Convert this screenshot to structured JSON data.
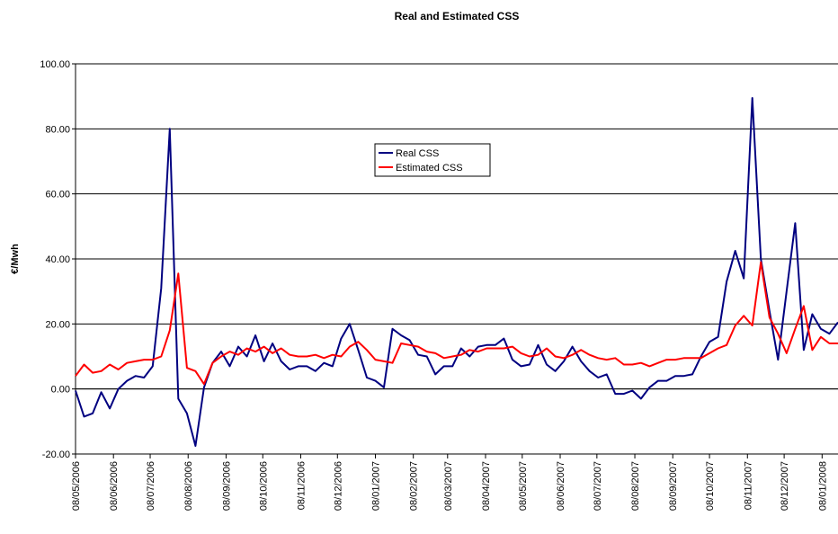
{
  "chart_data": {
    "type": "line",
    "title": "Real and Estimated CSS",
    "y_label": "€/Mwh",
    "x": [
      "08/05/2006",
      "15/05/2006",
      "22/05/2006",
      "29/05/2006",
      "05/06/2006",
      "12/06/2006",
      "19/06/2006",
      "26/06/2006",
      "03/07/2006",
      "10/07/2006",
      "17/07/2006",
      "24/07/2006",
      "31/07/2006",
      "07/08/2006",
      "14/08/2006",
      "21/08/2006",
      "28/08/2006",
      "04/09/2006",
      "11/09/2006",
      "18/09/2006",
      "25/09/2006",
      "02/10/2006",
      "09/10/2006",
      "16/10/2006",
      "23/10/2006",
      "30/10/2006",
      "06/11/2006",
      "13/11/2006",
      "20/11/2006",
      "27/11/2006",
      "04/12/2006",
      "11/12/2006",
      "18/12/2006",
      "25/12/2006",
      "01/01/2007",
      "08/01/2007",
      "15/01/2007",
      "22/01/2007",
      "29/01/2007",
      "05/02/2007",
      "12/02/2007",
      "19/02/2007",
      "26/02/2007",
      "05/03/2007",
      "12/03/2007",
      "19/03/2007",
      "26/03/2007",
      "02/04/2007",
      "09/04/2007",
      "16/04/2007",
      "23/04/2007",
      "30/04/2007",
      "07/05/2007",
      "14/05/2007",
      "21/05/2007",
      "28/05/2007",
      "04/06/2007",
      "11/06/2007",
      "18/06/2007",
      "25/06/2007",
      "02/07/2007",
      "09/07/2007",
      "16/07/2007",
      "23/07/2007",
      "30/07/2007",
      "06/08/2007",
      "13/08/2007",
      "20/08/2007",
      "27/08/2007",
      "03/09/2007",
      "10/09/2007",
      "17/09/2007",
      "24/09/2007",
      "01/10/2007",
      "08/10/2007",
      "15/10/2007",
      "22/10/2007",
      "29/10/2007",
      "05/11/2007",
      "12/11/2007",
      "19/11/2007",
      "26/11/2007",
      "03/12/2007",
      "10/12/2007",
      "17/12/2007",
      "24/12/2007",
      "31/12/2007",
      "07/01/2008",
      "14/01/2008",
      "21/01/2008"
    ],
    "series": [
      {
        "name": "Real CSS",
        "color": "#000080",
        "values": [
          -0.5,
          -8.5,
          -7.5,
          -1,
          -6,
          0,
          2.5,
          4,
          3.5,
          7,
          31,
          80,
          -3,
          -7.5,
          -17.5,
          0.5,
          8,
          11.5,
          7,
          13,
          10,
          16.5,
          8.5,
          14,
          8.5,
          6,
          7,
          7,
          5.5,
          8,
          7,
          15.5,
          20,
          12,
          3.5,
          2.5,
          0.5,
          18.5,
          16.5,
          15,
          10.5,
          10,
          4.5,
          7,
          7,
          12.5,
          10,
          13,
          13.5,
          13.5,
          15.5,
          9,
          7,
          7.5,
          13.5,
          7.5,
          5.5,
          8.5,
          13,
          8.5,
          5.5,
          3.5,
          4.5,
          -1.5,
          -1.5,
          -0.5,
          -3,
          0.5,
          2.5,
          2.5,
          4,
          4,
          4.5,
          10,
          14.5,
          16,
          33,
          42.5,
          34,
          89.5,
          40,
          24,
          9,
          30,
          51,
          12,
          23,
          18.5,
          17,
          20.5
        ]
      },
      {
        "name": "Estimated CSS",
        "color": "#ff0000",
        "values": [
          4,
          7.5,
          5,
          5.5,
          7.5,
          6,
          8,
          8.5,
          9,
          9,
          10,
          18,
          35.5,
          6.5,
          5.5,
          1.5,
          8,
          10,
          11.5,
          10.5,
          12.5,
          11.5,
          13,
          11,
          12.5,
          10.5,
          10,
          10,
          10.5,
          9.5,
          10.5,
          10,
          13,
          14.5,
          12,
          9,
          8.5,
          8,
          14,
          13.5,
          13,
          11.5,
          11,
          9.5,
          10,
          10.5,
          12,
          11.5,
          12.5,
          12.5,
          12.5,
          13,
          11,
          10,
          10.5,
          12.5,
          10,
          9.5,
          10.5,
          12,
          10.5,
          9.5,
          9,
          9.5,
          7.5,
          7.5,
          8,
          7,
          8,
          9,
          9,
          9.5,
          9.5,
          9.5,
          11,
          12.5,
          13.5,
          19.5,
          22.5,
          19.5,
          39,
          22,
          17,
          11,
          18.5,
          25.5,
          12,
          16,
          14,
          14
        ]
      }
    ],
    "xlim": [
      "08/05/2006",
      "21/01/2008"
    ],
    "xticks": [
      "08/05/2006",
      "08/06/2006",
      "08/07/2006",
      "08/08/2006",
      "08/09/2006",
      "08/10/2006",
      "08/11/2006",
      "08/12/2006",
      "08/01/2007",
      "08/02/2007",
      "08/03/2007",
      "08/04/2007",
      "08/05/2007",
      "08/06/2007",
      "08/07/2007",
      "08/08/2007",
      "08/09/2007",
      "08/10/2007",
      "08/11/2007",
      "08/12/2007",
      "08/01/2008"
    ],
    "ylim": [
      -20,
      100
    ],
    "yticks": [
      {
        "value": -20,
        "label": "-20.00"
      },
      {
        "value": 0,
        "label": "0.00"
      },
      {
        "value": 20,
        "label": "20.00"
      },
      {
        "value": 40,
        "label": "40.00"
      },
      {
        "value": 60,
        "label": "60.00"
      },
      {
        "value": 80,
        "label": "80.00"
      },
      {
        "value": 100,
        "label": "100.00"
      }
    ],
    "grid": true,
    "legend": "upper center"
  }
}
